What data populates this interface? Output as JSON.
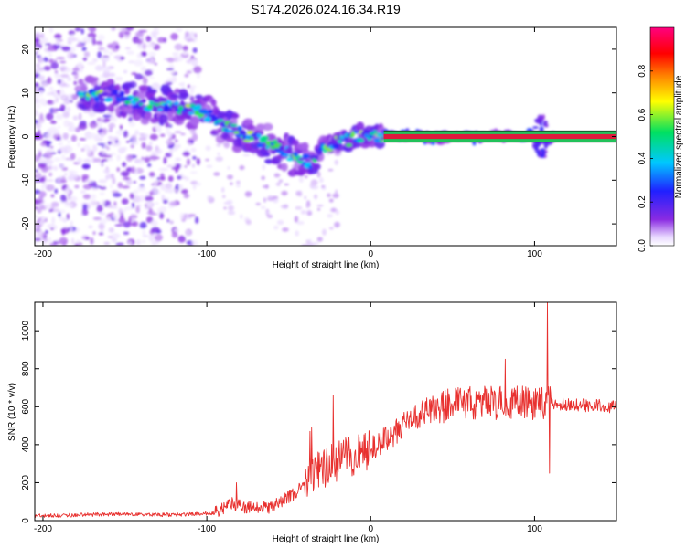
{
  "figure_title": "S174.2026.024.16.34.R19",
  "colors": {
    "snr_line": "#e8312f",
    "carrier_core": "#e0193c",
    "carrier_edge": "#22c25a",
    "scatter": "#7a2cf0"
  },
  "chart_data": [
    {
      "type": "heatmap",
      "title": "S174.2026.024.16.34.R19",
      "xlabel": "Height of straight line (km)",
      "ylabel": "Frequency (Hz)",
      "xlim": [
        -205,
        150
      ],
      "ylim": [
        -25,
        25
      ],
      "x_ticks": [
        -200,
        -100,
        0,
        100
      ],
      "x_tick_labels": [
        "-200",
        "-100",
        "0",
        "100"
      ],
      "y_ticks": [
        -20,
        -10,
        0,
        10,
        20
      ],
      "y_tick_labels": [
        "-20",
        "-10",
        "0",
        "10",
        "20"
      ],
      "colorbar": {
        "label": "Normalized spectral amplitude",
        "range": [
          0,
          1
        ],
        "ticks": [
          0.0,
          0.2,
          0.4,
          0.6,
          0.8
        ],
        "tick_labels": [
          "0.0",
          "0.2",
          "0.4",
          "0.6",
          "0.8"
        ],
        "colormap": "rainbow (white-violet-blue-cyan-green-yellow-red-magenta)"
      },
      "ridge": {
        "description": "Carrier frequency track versus height",
        "points": [
          {
            "x": -175,
            "y": 9
          },
          {
            "x": -160,
            "y": 9.5
          },
          {
            "x": -145,
            "y": 8
          },
          {
            "x": -125,
            "y": 7
          },
          {
            "x": -105,
            "y": 6
          },
          {
            "x": -90,
            "y": 3
          },
          {
            "x": -75,
            "y": 0
          },
          {
            "x": -60,
            "y": -2
          },
          {
            "x": -45,
            "y": -5
          },
          {
            "x": -35,
            "y": -6
          },
          {
            "x": -28,
            "y": -2
          },
          {
            "x": -15,
            "y": -1
          },
          {
            "x": -5,
            "y": 0.5
          },
          {
            "x": 10,
            "y": 0
          },
          {
            "x": 150,
            "y": 0
          }
        ],
        "stable_carrier_from_x": 8,
        "stable_carrier_amplitude": 1.0
      }
    },
    {
      "type": "line",
      "xlabel": "Height of straight line (km)",
      "ylabel": "SNR (10 * v/v)",
      "xlim": [
        -205,
        150
      ],
      "ylim": [
        0,
        1150
      ],
      "x_ticks": [
        -200,
        -100,
        0,
        100
      ],
      "x_tick_labels": [
        "-200",
        "-100",
        "0",
        "100"
      ],
      "y_ticks": [
        0,
        200,
        400,
        600,
        800,
        1000
      ],
      "y_tick_labels": [
        "0",
        "200",
        "400",
        "600",
        "800",
        "1000"
      ],
      "series": [
        {
          "name": "SNR",
          "envelope": {
            "x": [
              -205,
              -180,
              -150,
              -120,
              -95,
              -85,
              -75,
              -60,
              -45,
              -35,
              -25,
              -15,
              -5,
              0,
              10,
              20,
              30,
              40,
              50,
              60,
              80,
              100,
              120,
              150
            ],
            "y": [
              25,
              30,
              35,
              30,
              40,
              90,
              70,
              70,
              150,
              250,
              300,
              330,
              360,
              380,
              430,
              500,
              560,
              600,
              610,
              620,
              620,
              620,
              610,
              600
            ]
          },
          "spikes": [
            {
              "x": -82,
              "y": 200
            },
            {
              "x": -37,
              "y": 470
            },
            {
              "x": -36,
              "y": 490
            },
            {
              "x": -23,
              "y": 660
            },
            {
              "x": 82,
              "y": 850
            },
            {
              "x": 108,
              "y": 1150
            },
            {
              "x": 109,
              "y": 250
            }
          ]
        }
      ]
    }
  ]
}
